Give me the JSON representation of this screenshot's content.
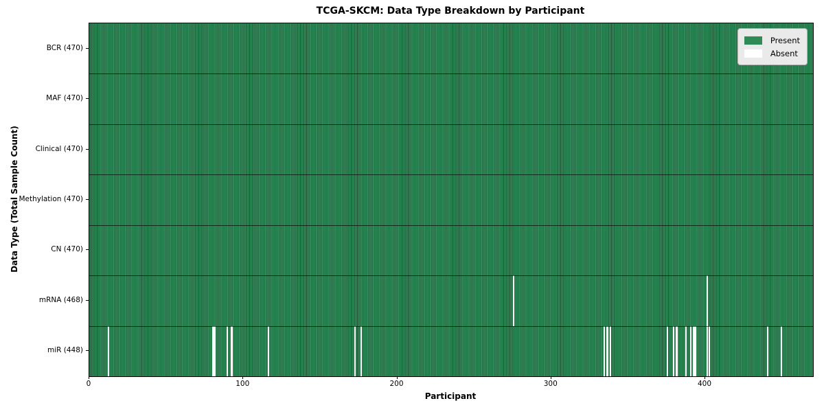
{
  "chart_data": {
    "type": "heatmap",
    "title": "TCGA-SKCM: Data Type Breakdown by Participant",
    "xlabel": "Participant",
    "ylabel": "Data Type (Total Sample Count)",
    "n_participants": 470,
    "xlim": [
      0,
      470
    ],
    "x_ticks": [
      0,
      100,
      200,
      300,
      400
    ],
    "legend_position": "upper right",
    "grid": false,
    "colors": {
      "present": "#2e8b57",
      "bar_edge": "#1c5434",
      "absent": "#ffffff",
      "row_separator": "rgba(0,0,0,0.65)"
    },
    "legend": [
      {
        "label": "Present",
        "color": "#2e8b57"
      },
      {
        "label": "Absent",
        "color": "#ffffff"
      }
    ],
    "rows": [
      {
        "label": "BCR (470)",
        "total": 470,
        "absent": []
      },
      {
        "label": "MAF (470)",
        "total": 470,
        "absent": []
      },
      {
        "label": "Clinical (470)",
        "total": 470,
        "absent": []
      },
      {
        "label": "Methylation (470)",
        "total": 470,
        "absent": []
      },
      {
        "label": "CN (470)",
        "total": 470,
        "absent": []
      },
      {
        "label": "mRNA (468)",
        "total": 468,
        "absent": [
          275,
          401
        ]
      },
      {
        "label": "miR (448)",
        "total": 448,
        "absent": [
          12,
          80,
          81,
          89,
          92,
          116,
          172,
          176,
          334,
          336,
          338,
          375,
          379,
          381,
          387,
          390,
          392,
          393,
          401,
          402,
          440,
          449
        ]
      }
    ]
  }
}
